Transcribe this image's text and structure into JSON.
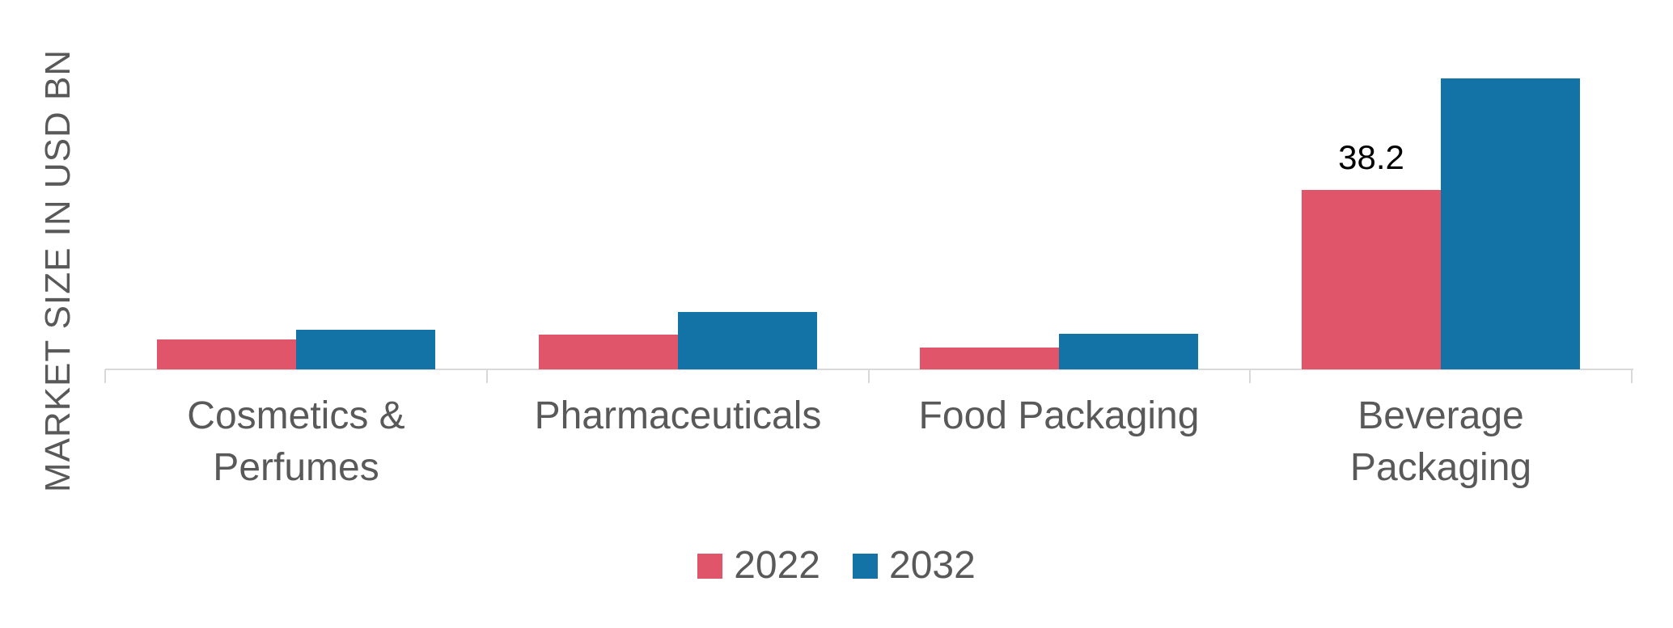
{
  "chart_data": {
    "type": "bar",
    "title": "",
    "xlabel": "",
    "ylabel": "MARKET SIZE IN USD BN",
    "categories": [
      "Cosmetics & Perfumes",
      "Pharmaceuticals",
      "Food Packaging",
      "Beverage Packaging"
    ],
    "series": [
      {
        "name": "2022",
        "color": "#E0556A",
        "values": [
          6.4,
          7.4,
          4.6,
          38.2
        ]
      },
      {
        "name": "2032",
        "color": "#1473A6",
        "values": [
          8.4,
          12.2,
          7.6,
          62.0
        ]
      }
    ],
    "data_labels": [
      {
        "series_index": 0,
        "category_index": 3,
        "text": "38.2"
      }
    ],
    "ylim": [
      0,
      65
    ],
    "grid": false,
    "y_tick_labels_visible": false,
    "legend_position": "bottom"
  },
  "colors": {
    "axis_line": "#D9D9D9",
    "category_label_text": "#595959",
    "axis_title_text": "#595959",
    "data_label_text": "#000000",
    "background": "#FFFFFF"
  },
  "legend": {
    "items": [
      {
        "label": "2022",
        "color": "#E0556A"
      },
      {
        "label": "2032",
        "color": "#1473A6"
      }
    ]
  }
}
